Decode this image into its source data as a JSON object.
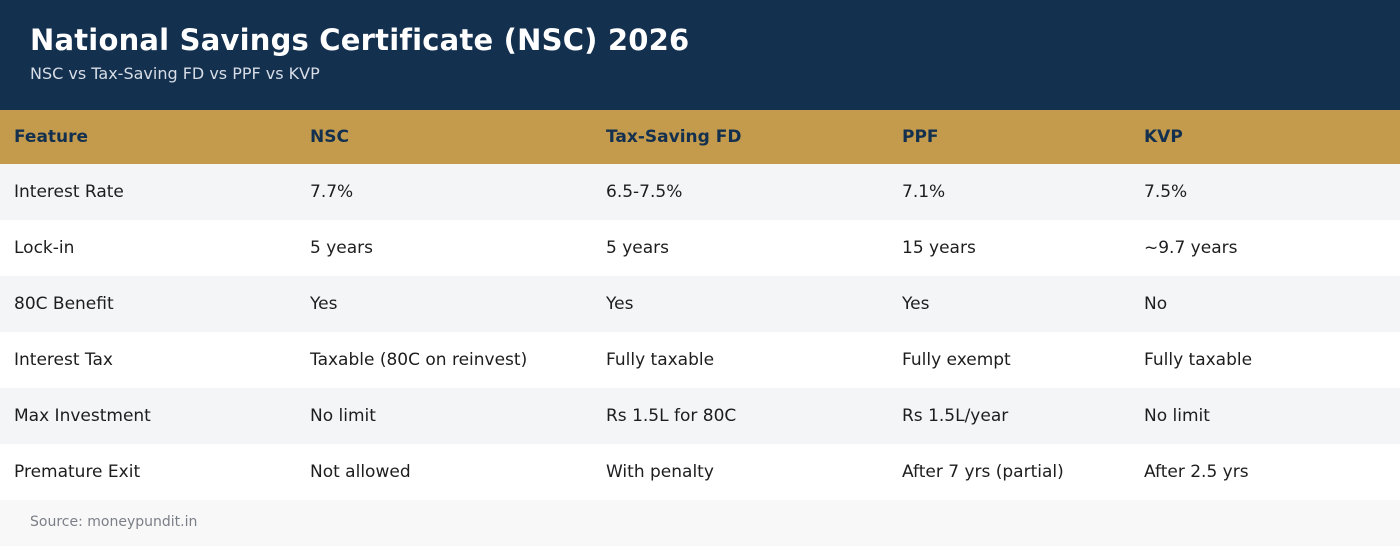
{
  "header": {
    "title": "National Savings Certificate (NSC) 2026",
    "subtitle": "NSC vs Tax-Saving FD vs PPF vs KVP"
  },
  "table": {
    "columns": [
      "Feature",
      "NSC",
      "Tax-Saving FD",
      "PPF",
      "KVP"
    ],
    "rows": [
      [
        "Interest Rate",
        "7.7%",
        "6.5-7.5%",
        "7.1%",
        "7.5%"
      ],
      [
        "Lock-in",
        "5 years",
        "5 years",
        "15 years",
        "~9.7 years"
      ],
      [
        "80C Benefit",
        "Yes",
        "Yes",
        "Yes",
        "No"
      ],
      [
        "Interest Tax",
        "Taxable (80C on reinvest)",
        "Fully taxable",
        "Fully exempt",
        "Fully taxable"
      ],
      [
        "Max Investment",
        "No limit",
        "Rs 1.5L for 80C",
        "Rs 1.5L/year",
        "No limit"
      ],
      [
        "Premature Exit",
        "Not allowed",
        "With penalty",
        "After 7 yrs (partial)",
        "After 2.5 yrs"
      ]
    ]
  },
  "footer": {
    "source": "Source: moneypundit.in"
  },
  "colors": {
    "header_bg": "#14304f",
    "column_header_bg": "#c49b4c",
    "row_alt_bg": "#f4f5f7"
  }
}
